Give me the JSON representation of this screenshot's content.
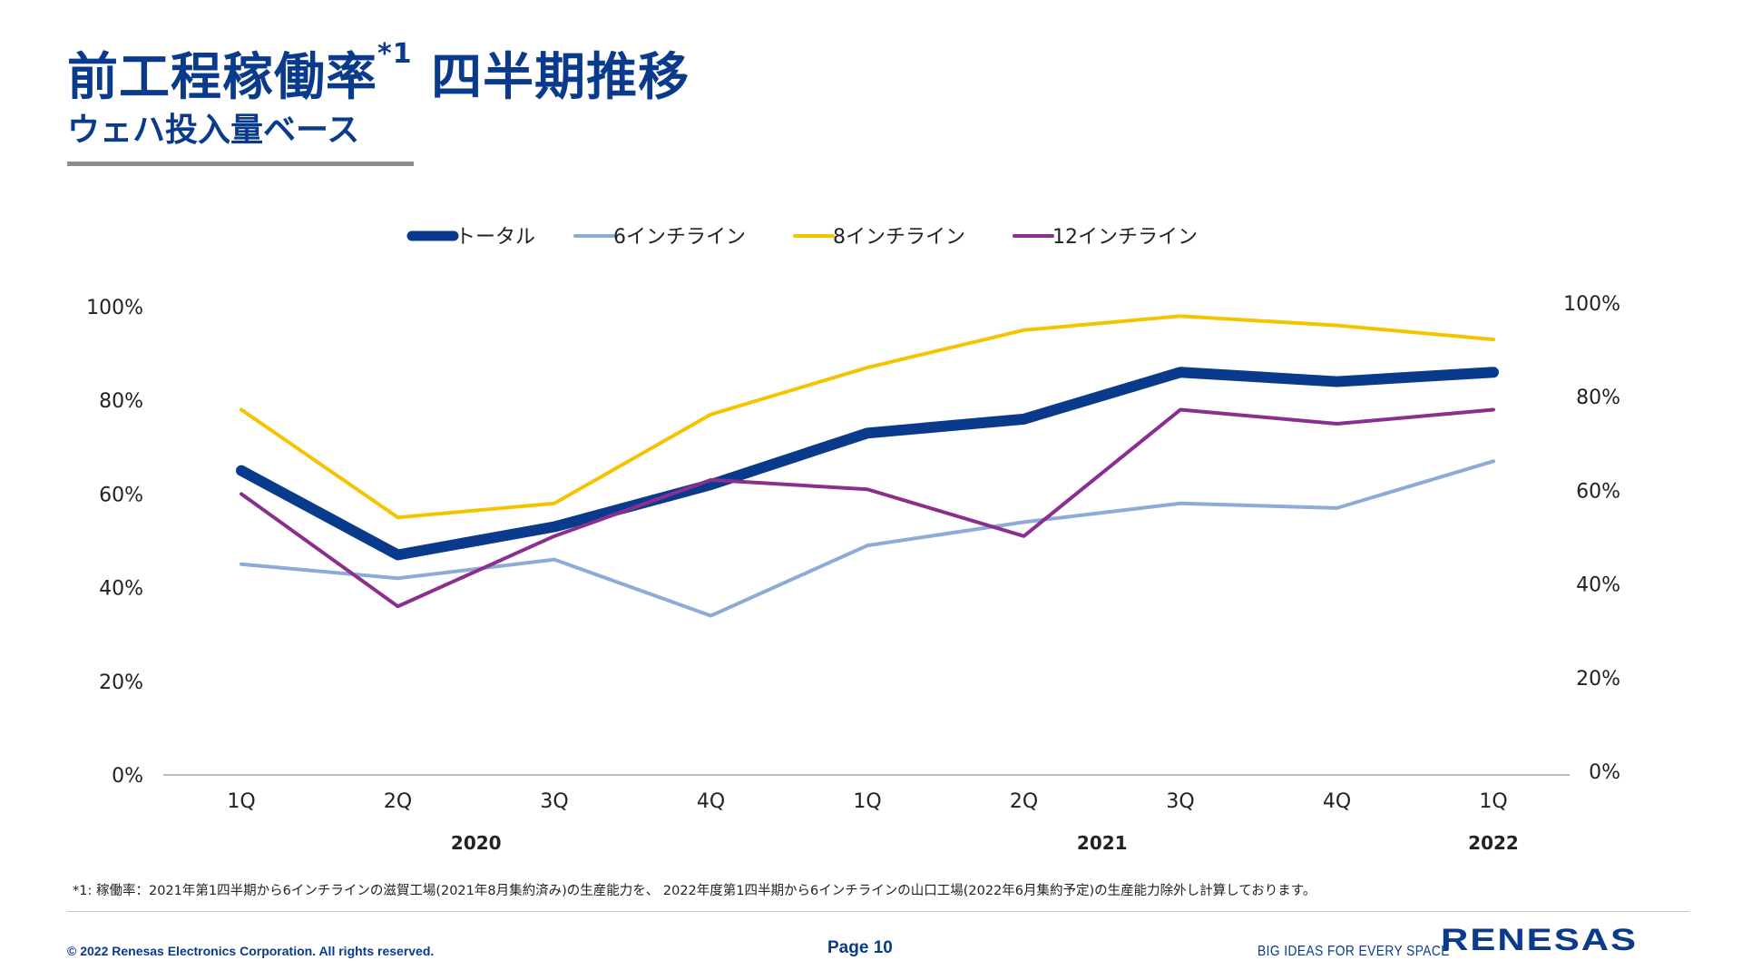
{
  "title": "前工程稼働率",
  "title_sup": "*1",
  "title_tail": "四半期推移",
  "subtitle": "ウェハ投入量ベース",
  "footnote": "*1: 稼働率：2021年第1四半期から6インチラインの滋賀工場(2021年8月集約済み)の生産能力を、 2022年度第1四半期から6インチラインの山口工場(2022年6月集約予定)の生産能力除外し計算しております。",
  "footer": {
    "copyright": "© 2022 Renesas Electronics Corporation. All rights reserved.",
    "page": "Page 10",
    "tagline": "BIG IDEAS FOR EVERY SPACE",
    "logo": "RENESAS"
  },
  "colors": {
    "title": "#0a3a8c",
    "total": "#0a3a8c",
    "six": "#8eaad6",
    "eight": "#f5c400",
    "twelve": "#8b2f8f",
    "axis": "#a6a6a6",
    "text": "#222222"
  },
  "chart_data": {
    "type": "line",
    "categories": [
      "1Q",
      "2Q",
      "3Q",
      "4Q",
      "1Q",
      "2Q",
      "3Q",
      "4Q",
      "1Q"
    ],
    "year_labels": [
      {
        "label": "2020",
        "category_index": 1.5
      },
      {
        "label": "2021",
        "category_index": 5.5
      },
      {
        "label": "2022",
        "category_index": 8
      }
    ],
    "y_ticks": [
      "0%",
      "20%",
      "40%",
      "60%",
      "80%",
      "100%"
    ],
    "y2_ticks": [
      "0%",
      "20%",
      "40%",
      "60%",
      "80%",
      "100%"
    ],
    "ylim": [
      0,
      100
    ],
    "grid": false,
    "legend_position": "top",
    "series": [
      {
        "key": "total",
        "name": "トータル",
        "values": [
          65,
          47,
          53,
          62,
          73,
          76,
          86,
          84,
          86
        ]
      },
      {
        "key": "six",
        "name": "6インチライン",
        "values": [
          45,
          42,
          46,
          34,
          49,
          54,
          58,
          57,
          67
        ]
      },
      {
        "key": "eight",
        "name": "8インチライン",
        "values": [
          78,
          55,
          58,
          77,
          87,
          95,
          98,
          96,
          93
        ]
      },
      {
        "key": "twelve",
        "name": "12インチライン",
        "values": [
          60,
          36,
          51,
          63,
          61,
          51,
          78,
          75,
          78
        ]
      }
    ]
  }
}
